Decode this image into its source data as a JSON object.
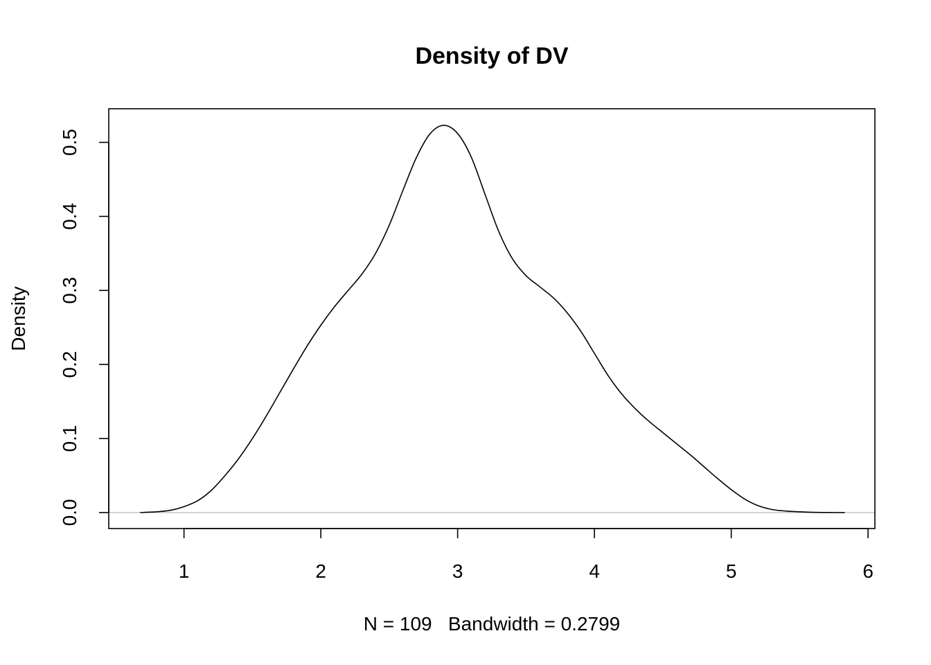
{
  "chart_data": {
    "type": "line",
    "title": "Density of DV",
    "xlabel": "N = 109   Bandwidth = 0.2799",
    "ylabel": "Density",
    "xlim": [
      0.45,
      6.05
    ],
    "ylim": [
      -0.0216,
      0.5454
    ],
    "xticks": [
      1,
      2,
      3,
      4,
      5,
      6
    ],
    "xtick_labels": [
      "1",
      "2",
      "3",
      "4",
      "5",
      "6"
    ],
    "yticks": [
      0.0,
      0.1,
      0.2,
      0.3,
      0.4,
      0.5
    ],
    "ytick_labels": [
      "0.0",
      "0.1",
      "0.2",
      "0.3",
      "0.4",
      "0.5"
    ],
    "grid": false,
    "baseline": {
      "y": 0,
      "color": "#bebebe"
    },
    "series": [
      {
        "color": "#000000",
        "x": [
          0.68,
          0.8,
          0.9,
          1.0,
          1.1,
          1.2,
          1.3,
          1.4,
          1.5,
          1.6,
          1.7,
          1.8,
          1.9,
          2.0,
          2.1,
          2.2,
          2.3,
          2.4,
          2.5,
          2.6,
          2.7,
          2.8,
          2.9,
          3.0,
          3.1,
          3.2,
          3.3,
          3.4,
          3.5,
          3.6,
          3.7,
          3.8,
          3.9,
          4.0,
          4.1,
          4.2,
          4.3,
          4.4,
          4.5,
          4.6,
          4.7,
          4.8,
          4.9,
          5.0,
          5.1,
          5.2,
          5.3,
          5.4,
          5.5,
          5.6,
          5.7,
          5.83
        ],
        "y": [
          0.0,
          0.001,
          0.003,
          0.008,
          0.016,
          0.03,
          0.05,
          0.073,
          0.1,
          0.13,
          0.162,
          0.194,
          0.225,
          0.253,
          0.278,
          0.3,
          0.322,
          0.35,
          0.388,
          0.435,
          0.48,
          0.512,
          0.523,
          0.512,
          0.48,
          0.43,
          0.38,
          0.343,
          0.32,
          0.305,
          0.29,
          0.27,
          0.245,
          0.215,
          0.185,
          0.16,
          0.14,
          0.123,
          0.108,
          0.093,
          0.078,
          0.062,
          0.046,
          0.031,
          0.018,
          0.009,
          0.004,
          0.002,
          0.001,
          0.0003,
          0.0001,
          0.0
        ]
      }
    ]
  }
}
